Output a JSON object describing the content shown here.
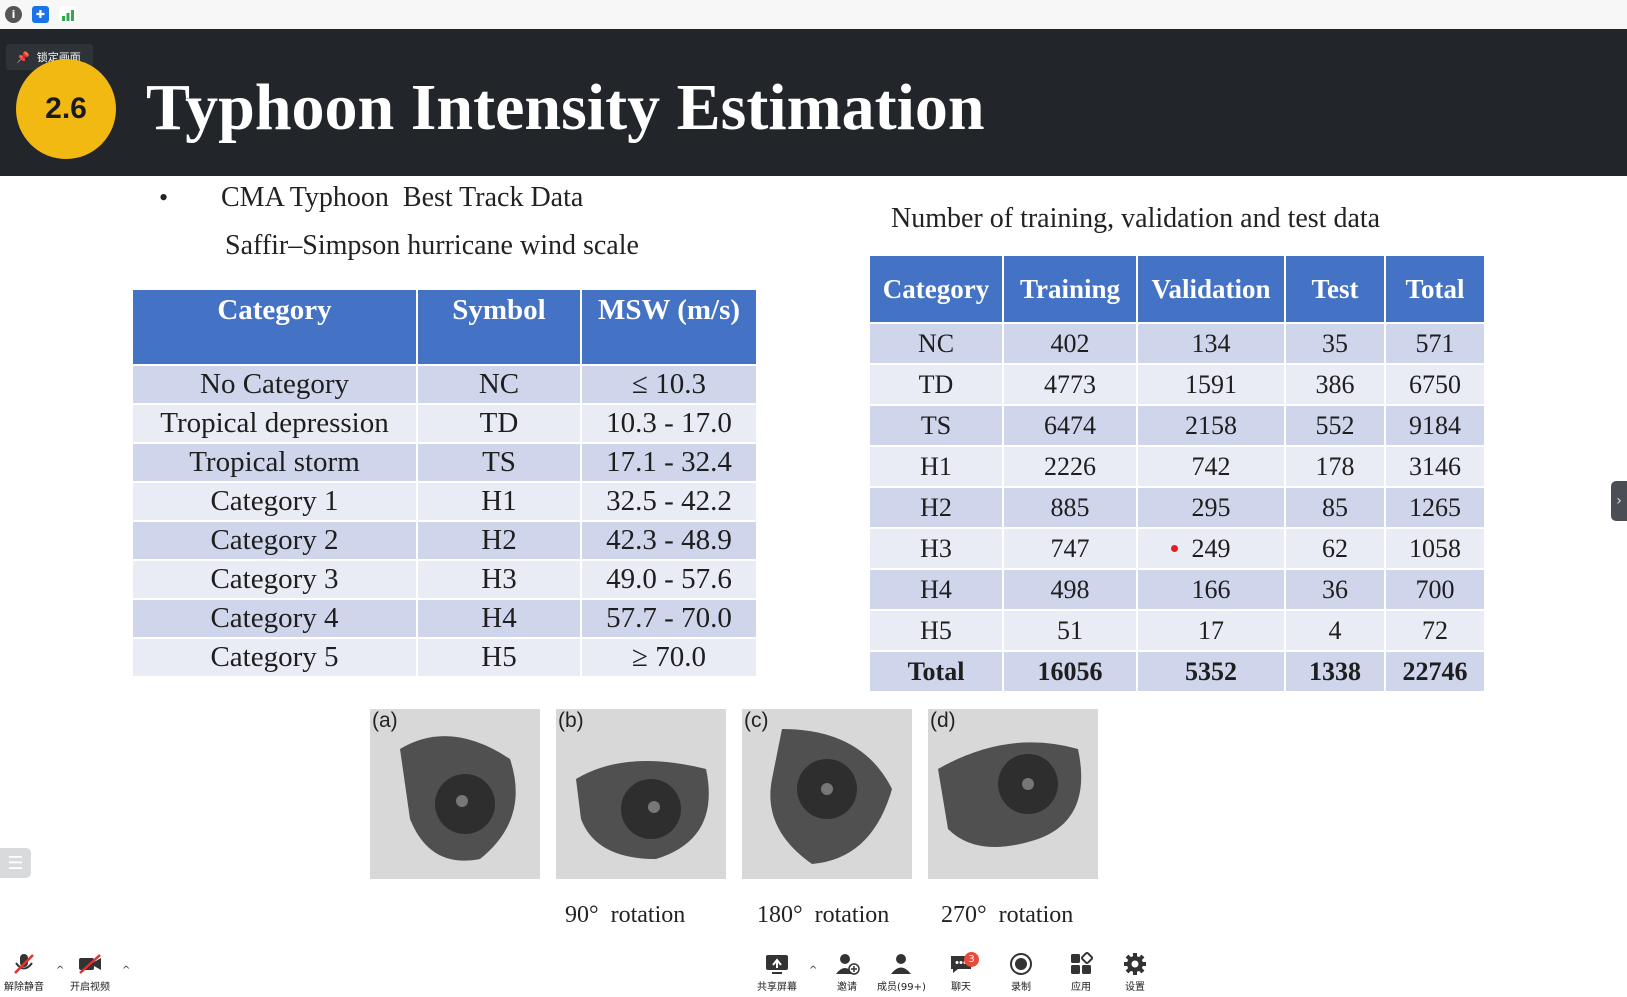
{
  "slide": {
    "badge": "2.6",
    "title": "Typhoon Intensity Estimation",
    "bullet_symbol": "•",
    "bullet_line1": "CMA Typhoon  Best Track Data",
    "bullet_line2": "Saffir–Simpson hurricane wind scale",
    "right_title": "Number of training, validation and test data"
  },
  "scale_table": {
    "headers": [
      "Category",
      "Symbol",
      "MSW (m/s)"
    ],
    "rows": [
      [
        "No Category",
        "NC",
        "≤ 10.3"
      ],
      [
        "Tropical depression",
        "TD",
        "10.3 - 17.0"
      ],
      [
        "Tropical storm",
        "TS",
        "17.1 - 32.4"
      ],
      [
        "Category 1",
        "H1",
        "32.5 - 42.2"
      ],
      [
        "Category 2",
        "H2",
        "42.3 - 48.9"
      ],
      [
        "Category 3",
        "H3",
        "49.0 - 57.6"
      ],
      [
        "Category 4",
        "H4",
        "57.7 - 70.0"
      ],
      [
        "Category 5",
        "H5",
        "≥ 70.0"
      ]
    ]
  },
  "data_table": {
    "headers": [
      "Category",
      "Training",
      "Validation",
      "Test",
      "Total"
    ],
    "rows": [
      [
        "NC",
        "402",
        "134",
        "35",
        "571"
      ],
      [
        "TD",
        "4773",
        "1591",
        "386",
        "6750"
      ],
      [
        "TS",
        "6474",
        "2158",
        "552",
        "9184"
      ],
      [
        "H1",
        "2226",
        "742",
        "178",
        "3146"
      ],
      [
        "H2",
        "885",
        "295",
        "85",
        "1265"
      ],
      [
        "H3",
        "747",
        "249",
        "62",
        "1058"
      ],
      [
        "H4",
        "498",
        "166",
        "36",
        "700"
      ],
      [
        "H5",
        "51",
        "17",
        "4",
        "72"
      ],
      [
        "Total",
        "16056",
        "5352",
        "1338",
        "22746"
      ]
    ]
  },
  "images": {
    "labels": [
      "(a)",
      "(b)",
      "(c)",
      "(d)"
    ],
    "captions": [
      "90°  rotation",
      "180°  rotation",
      "270°  rotation"
    ]
  },
  "overlay": {
    "lock_label": "锁定画面"
  },
  "toolbar": {
    "mute": "解除静音",
    "video": "开启视频",
    "share": "共享屏幕",
    "invite": "邀请",
    "members": "成员(99+)",
    "chat": "聊天",
    "chat_badge": "3",
    "record": "录制",
    "apps": "应用",
    "settings": "设置"
  }
}
